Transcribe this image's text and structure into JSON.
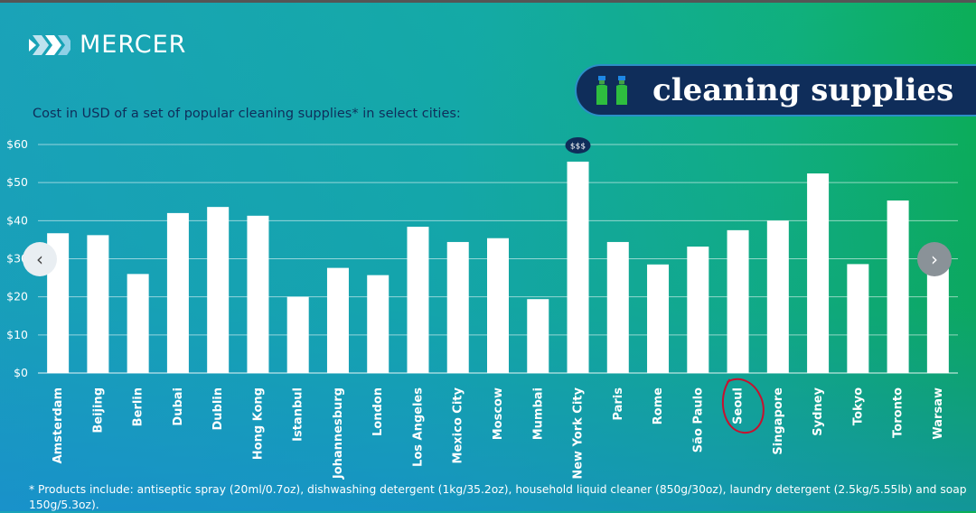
{
  "brand": {
    "name": "MERCER",
    "logo_icon": "mercer-chevron-icon"
  },
  "banner": {
    "title": "cleaning supplies",
    "icon": "spray-bottles-icon"
  },
  "colors": {
    "banner_bg": "#0f2d5a",
    "bar": "#ffffff",
    "text_dark": "#0f2d5a",
    "annotation": "#c8102e"
  },
  "nav": {
    "prev_label": "‹",
    "next_label": "›"
  },
  "footnote": "* Products include: antiseptic spray (20ml/0.7oz), dishwashing detergent (1kg/35.2oz), household liquid cleaner (850g/30oz), laundry detergent (2.5kg/5.55lb) and soap 150g/5.3oz).",
  "chart_data": {
    "type": "bar",
    "title": "Cost in USD of a set of popular cleaning supplies* in select cities:",
    "xlabel": "",
    "ylabel": "",
    "ylim": [
      0,
      60
    ],
    "y_ticks": [
      "$0",
      "$10",
      "$20",
      "$30",
      "$40",
      "$50",
      "$60"
    ],
    "grid": true,
    "categories": [
      "Amsterdam",
      "Beijing",
      "Berlin",
      "Dubai",
      "Dublin",
      "Hong Kong",
      "Istanbul",
      "Johannesburg",
      "London",
      "Los Angeles",
      "Mexico City",
      "Moscow",
      "Mumbai",
      "New York City",
      "Paris",
      "Rome",
      "São Paulo",
      "Seoul",
      "Singapore",
      "Sydney",
      "Tokyo",
      "Toronto",
      "Warsaw"
    ],
    "values": [
      36.7,
      36.2,
      26.0,
      42.0,
      43.6,
      41.3,
      20.0,
      27.6,
      25.7,
      38.4,
      34.4,
      35.4,
      19.4,
      55.5,
      34.4,
      28.5,
      33.2,
      37.5,
      40.0,
      52.4,
      28.6,
      45.3,
      28.0
    ],
    "annotations": [
      {
        "category": "New York City",
        "text": "$$$",
        "type": "badge"
      },
      {
        "category": "Seoul",
        "type": "circle"
      }
    ]
  }
}
